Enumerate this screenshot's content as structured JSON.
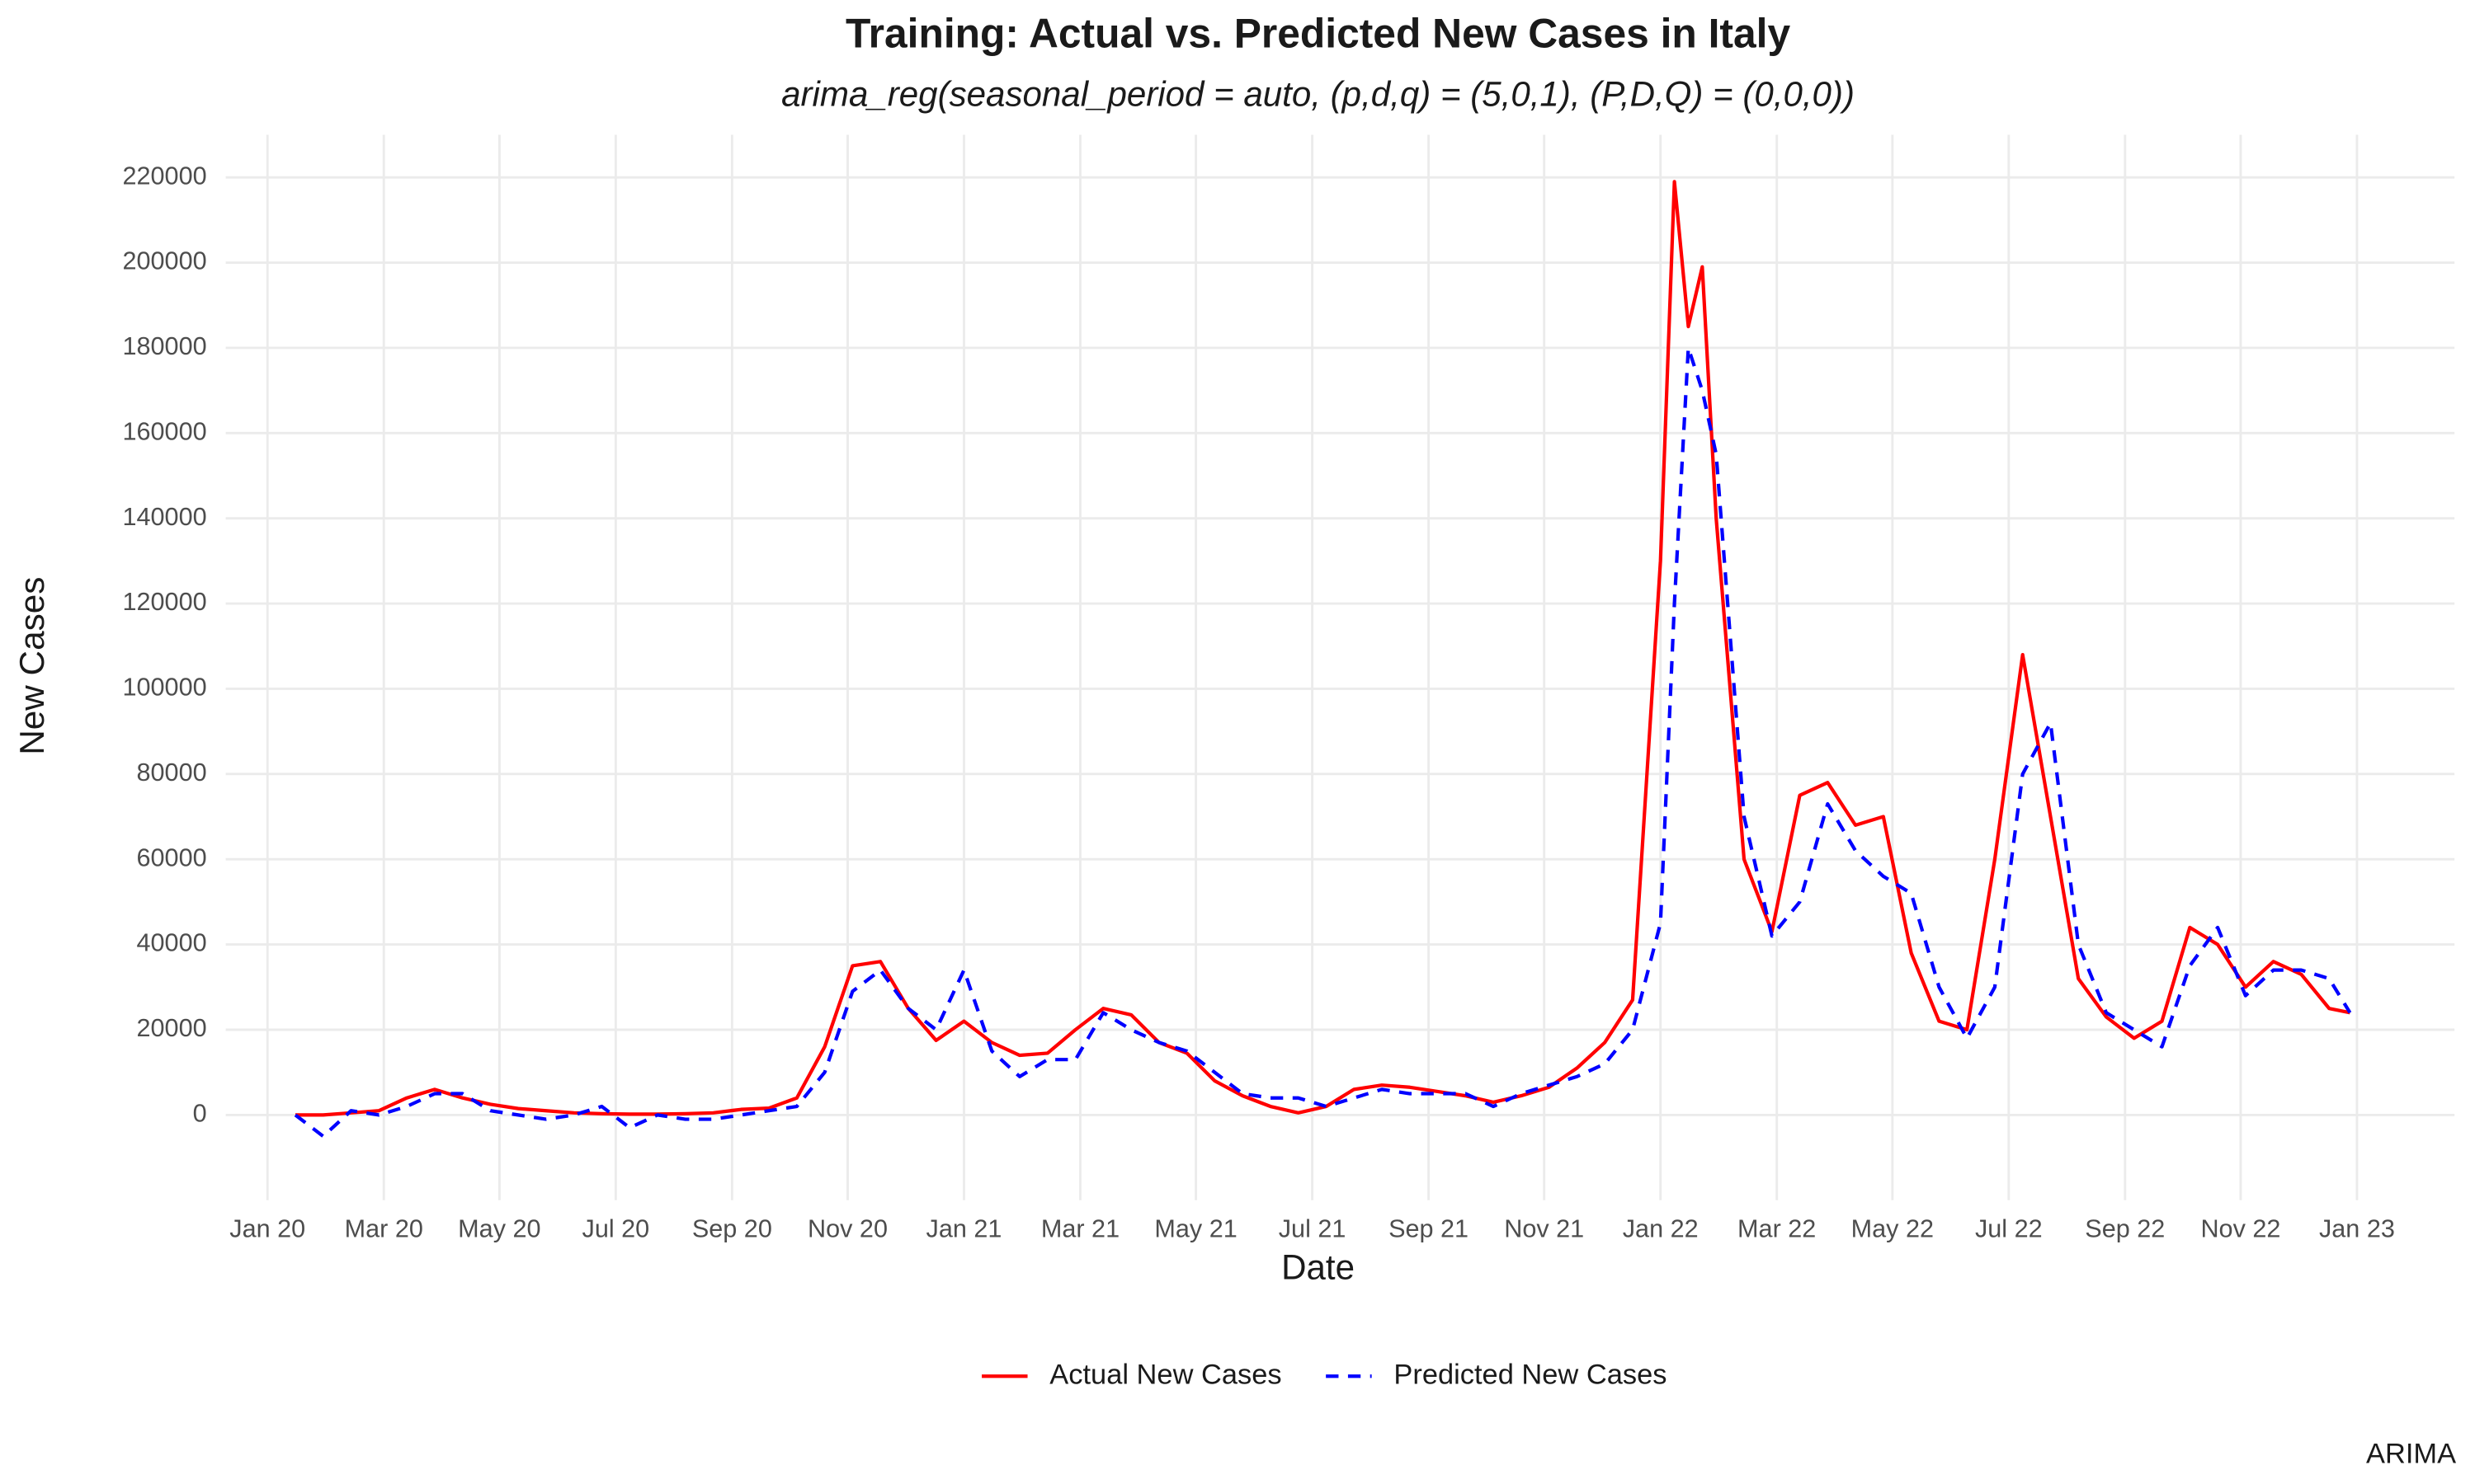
{
  "chart_data": {
    "type": "line",
    "title": "Training: Actual vs. Predicted New Cases in Italy",
    "subtitle": "arima_reg(seasonal_period = auto, (p,d,q) = (5,0,1), (P,D,Q) = (0,0,0))",
    "x_label": "Date",
    "y_label": "New Cases",
    "caption": "ARIMA",
    "legend": "bottom",
    "grid": true,
    "x": [
      2020.04,
      2020.08,
      2020.12,
      2020.16,
      2020.2,
      2020.24,
      2020.28,
      2020.32,
      2020.36,
      2020.4,
      2020.44,
      2020.48,
      2020.52,
      2020.56,
      2020.6,
      2020.64,
      2020.68,
      2020.72,
      2020.76,
      2020.8,
      2020.84,
      2020.88,
      2020.92,
      2020.96,
      2021.0,
      2021.04,
      2021.08,
      2021.12,
      2021.16,
      2021.2,
      2021.24,
      2021.28,
      2021.32,
      2021.36,
      2021.4,
      2021.44,
      2021.48,
      2021.52,
      2021.56,
      2021.6,
      2021.64,
      2021.68,
      2021.72,
      2021.76,
      2021.8,
      2021.84,
      2021.88,
      2021.92,
      2021.96,
      2022.0,
      2022.02,
      2022.04,
      2022.06,
      2022.08,
      2022.12,
      2022.16,
      2022.2,
      2022.24,
      2022.28,
      2022.32,
      2022.36,
      2022.4,
      2022.44,
      2022.48,
      2022.52,
      2022.56,
      2022.6,
      2022.64,
      2022.68,
      2022.72,
      2022.76,
      2022.8,
      2022.84,
      2022.88,
      2022.92,
      2022.96,
      2022.99
    ],
    "series": [
      {
        "name": "Actual New Cases",
        "color": "#ff0000",
        "linestyle": "solid",
        "values": [
          0,
          0,
          500,
          1000,
          4000,
          6000,
          4000,
          2500,
          1500,
          1000,
          500,
          300,
          200,
          200,
          300,
          500,
          1300,
          1600,
          4000,
          16000,
          35000,
          36000,
          25000,
          17500,
          22000,
          17000,
          14000,
          14500,
          20000,
          25000,
          23500,
          17000,
          14500,
          8000,
          4500,
          2000,
          500,
          2000,
          6000,
          7000,
          6500,
          5500,
          4500,
          3000,
          4500,
          6500,
          11000,
          17000,
          27000,
          130000,
          219000,
          185000,
          199000,
          140000,
          60000,
          43000,
          75000,
          78000,
          68000,
          70000,
          38000,
          22000,
          20000,
          60000,
          108000,
          70000,
          32000,
          23000,
          18000,
          22000,
          44000,
          40000,
          30000,
          36000,
          33000,
          25000,
          24000
        ]
      },
      {
        "name": "Predicted New Cases",
        "color": "#0000ff",
        "linestyle": "dashed",
        "values": [
          0,
          -5000,
          1000,
          0,
          2000,
          5000,
          5000,
          1000,
          0,
          -1000,
          0,
          2000,
          -3000,
          0,
          -1000,
          -1000,
          0,
          1000,
          2000,
          10000,
          29000,
          34000,
          25000,
          20000,
          34000,
          15000,
          9000,
          13000,
          13000,
          24000,
          20000,
          17000,
          15000,
          10000,
          5000,
          4000,
          4000,
          2000,
          4000,
          6000,
          5000,
          5000,
          5000,
          2000,
          5000,
          7000,
          9000,
          12000,
          20000,
          45000,
          120000,
          180000,
          170000,
          155000,
          70000,
          42000,
          50000,
          73000,
          62000,
          56000,
          52000,
          30000,
          18000,
          30000,
          80000,
          92000,
          40000,
          24000,
          20000,
          16000,
          35000,
          44000,
          28000,
          34000,
          34000,
          32000,
          24000
        ]
      }
    ],
    "xlim": [
      2019.94,
      2023.14
    ],
    "xticks": [
      {
        "value": 2020.0,
        "label": "Jan 20"
      },
      {
        "value": 2020.167,
        "label": "Mar 20"
      },
      {
        "value": 2020.333,
        "label": "May 20"
      },
      {
        "value": 2020.5,
        "label": "Jul 20"
      },
      {
        "value": 2020.667,
        "label": "Sep 20"
      },
      {
        "value": 2020.833,
        "label": "Nov 20"
      },
      {
        "value": 2021.0,
        "label": "Jan 21"
      },
      {
        "value": 2021.167,
        "label": "Mar 21"
      },
      {
        "value": 2021.333,
        "label": "May 21"
      },
      {
        "value": 2021.5,
        "label": "Jul 21"
      },
      {
        "value": 2021.667,
        "label": "Sep 21"
      },
      {
        "value": 2021.833,
        "label": "Nov 21"
      },
      {
        "value": 2022.0,
        "label": "Jan 22"
      },
      {
        "value": 2022.167,
        "label": "Mar 22"
      },
      {
        "value": 2022.333,
        "label": "May 22"
      },
      {
        "value": 2022.5,
        "label": "Jul 22"
      },
      {
        "value": 2022.667,
        "label": "Sep 22"
      },
      {
        "value": 2022.833,
        "label": "Nov 22"
      },
      {
        "value": 2023.0,
        "label": "Jan 23"
      }
    ],
    "ylim": [
      -20000,
      230000
    ],
    "yticks": [
      0,
      20000,
      40000,
      60000,
      80000,
      100000,
      120000,
      140000,
      160000,
      180000,
      200000,
      220000
    ]
  }
}
